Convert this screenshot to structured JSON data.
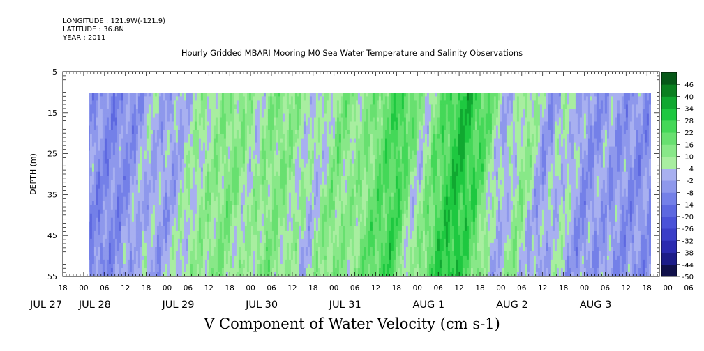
{
  "header": {
    "longitude": "LONGITUDE : 121.9W(-121.9)",
    "latitude": "LATITUDE : 36.8N",
    "year": "YEAR : 2011"
  },
  "chart_data": {
    "type": "heatmap",
    "title": "Hourly Gridded MBARI Mooring M0 Sea Water Temperature and Salinity Observations",
    "xlabel": "V Component of Water Velocity (cm s-1)",
    "ylabel": "DEPTH (m)",
    "ylim": [
      55,
      5
    ],
    "y_ticks": [
      5,
      15,
      25,
      35,
      45,
      55
    ],
    "x_hour_ticks": [
      "18",
      "00",
      "06",
      "12",
      "18",
      "00",
      "06",
      "12",
      "18",
      "00",
      "06",
      "12",
      "18",
      "00",
      "06",
      "12",
      "18",
      "00",
      "06",
      "12",
      "18",
      "00",
      "06",
      "12",
      "18",
      "00",
      "06",
      "12",
      "18",
      "00",
      "06",
      "12"
    ],
    "x_day_labels": [
      "JUL 27",
      "JUL 28",
      "JUL 29",
      "JUL 30",
      "JUL 31",
      "AUG  1",
      "AUG  2",
      "AUG  3"
    ],
    "data_depth_range": [
      10,
      55
    ],
    "data_start_hour_label": "JUL 28 00",
    "colorbar_levels": [
      -50,
      -44,
      -38,
      -32,
      -26,
      -20,
      -14,
      -8,
      -2,
      4,
      10,
      16,
      22,
      28,
      34,
      40,
      46
    ],
    "colorbar_colors": [
      "#10104a",
      "#1c1c88",
      "#2a2ab0",
      "#3a3ec8",
      "#4a52d8",
      "#5d68e0",
      "#7480e8",
      "#8e98ec",
      "#a8b0f0",
      "#a8eea0",
      "#88e888",
      "#68e070",
      "#44d858",
      "#1ec840",
      "#10a830",
      "#0a8020",
      "#065818"
    ],
    "v_velocity_profile": [
      {
        "x": "JUL 28 00",
        "v": -5
      },
      {
        "x": "JUL 28 06",
        "v": -8
      },
      {
        "x": "JUL 28 12",
        "v": -6
      },
      {
        "x": "JUL 28 18",
        "v": 2
      },
      {
        "x": "JUL 29 00",
        "v": -3
      },
      {
        "x": "JUL 29 06",
        "v": 6
      },
      {
        "x": "JUL 29 12",
        "v": 10
      },
      {
        "x": "JUL 29 18",
        "v": 14
      },
      {
        "x": "JUL 30 00",
        "v": 6
      },
      {
        "x": "JUL 30 06",
        "v": 14
      },
      {
        "x": "JUL 30 12",
        "v": 10
      },
      {
        "x": "JUL 30 18",
        "v": 2
      },
      {
        "x": "JUL 31 00",
        "v": 14
      },
      {
        "x": "JUL 31 06",
        "v": 10
      },
      {
        "x": "JUL 31 12",
        "v": 18
      },
      {
        "x": "JUL 31 18",
        "v": 26
      },
      {
        "x": "AUG 1 00",
        "v": 4
      },
      {
        "x": "AUG 1 06",
        "v": 22
      },
      {
        "x": "AUG 1 12",
        "v": 32
      },
      {
        "x": "AUG 1 18",
        "v": 20
      },
      {
        "x": "AUG 2 00",
        "v": -2
      },
      {
        "x": "AUG 2 06",
        "v": 12
      },
      {
        "x": "AUG 2 12",
        "v": -4
      },
      {
        "x": "AUG 2 18",
        "v": 6
      },
      {
        "x": "AUG 3 00",
        "v": -6
      },
      {
        "x": "AUG 3 06",
        "v": -2
      },
      {
        "x": "AUG 3 12",
        "v": -6
      }
    ]
  }
}
